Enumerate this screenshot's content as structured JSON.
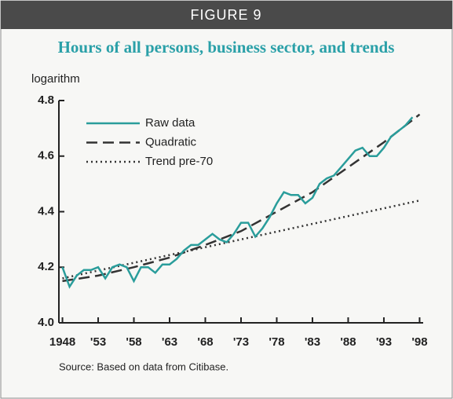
{
  "header": "FIGURE 9",
  "chart_data": {
    "type": "line",
    "title": "Hours of all persons, business sector, and trends",
    "ylabel": "logarithm",
    "source": "Source: Based on data from Citibase.",
    "xlim": [
      1947.5,
      1998.5
    ],
    "ylim": [
      4.0,
      4.8
    ],
    "yticks": [
      {
        "value": 4,
        "label": "4.0"
      },
      4.2,
      4.4,
      4.6,
      4.8
    ],
    "xticks": [
      {
        "value": 1948,
        "label": "1948"
      },
      {
        "value": 1953,
        "label": "'53"
      },
      {
        "value": 1958,
        "label": "'58"
      },
      {
        "value": 1963,
        "label": "'63"
      },
      {
        "value": 1968,
        "label": "'68"
      },
      {
        "value": 1973,
        "label": "'73"
      },
      {
        "value": 1978,
        "label": "'78"
      },
      {
        "value": 1983,
        "label": "'83"
      },
      {
        "value": 1988,
        "label": "'88"
      },
      {
        "value": 1993,
        "label": "'93"
      },
      {
        "value": 1998,
        "label": "'98"
      }
    ],
    "series": [
      {
        "name": "Raw data",
        "color": "#2a9d9b",
        "style": "solid",
        "x": [
          1948,
          1949,
          1950,
          1951,
          1952,
          1953,
          1954,
          1955,
          1956,
          1957,
          1958,
          1959,
          1960,
          1961,
          1962,
          1963,
          1964,
          1965,
          1966,
          1967,
          1968,
          1969,
          1970,
          1971,
          1972,
          1973,
          1974,
          1975,
          1976,
          1977,
          1978,
          1979,
          1980,
          1981,
          1982,
          1983,
          1984,
          1985,
          1986,
          1987,
          1988,
          1989,
          1990,
          1991,
          1992,
          1993,
          1994,
          1995,
          1996,
          1997
        ],
        "values": [
          4.2,
          4.13,
          4.17,
          4.19,
          4.19,
          4.2,
          4.16,
          4.2,
          4.21,
          4.2,
          4.15,
          4.2,
          4.2,
          4.18,
          4.21,
          4.21,
          4.23,
          4.26,
          4.28,
          4.28,
          4.3,
          4.32,
          4.3,
          4.29,
          4.32,
          4.36,
          4.36,
          4.31,
          4.34,
          4.38,
          4.43,
          4.47,
          4.46,
          4.46,
          4.43,
          4.45,
          4.5,
          4.52,
          4.53,
          4.56,
          4.59,
          4.62,
          4.63,
          4.6,
          4.6,
          4.63,
          4.67,
          4.69,
          4.71,
          4.74
        ]
      },
      {
        "name": "Quadratic",
        "color": "#333333",
        "style": "dashed",
        "x": [
          1948,
          1953,
          1958,
          1963,
          1968,
          1973,
          1978,
          1983,
          1988,
          1993,
          1998
        ],
        "values": [
          4.15,
          4.17,
          4.2,
          4.235,
          4.28,
          4.33,
          4.4,
          4.47,
          4.56,
          4.65,
          4.75
        ]
      },
      {
        "name": "Trend pre-70",
        "color": "#333333",
        "style": "dotted",
        "x": [
          1948,
          1998
        ],
        "values": [
          4.16,
          4.44
        ]
      }
    ]
  }
}
